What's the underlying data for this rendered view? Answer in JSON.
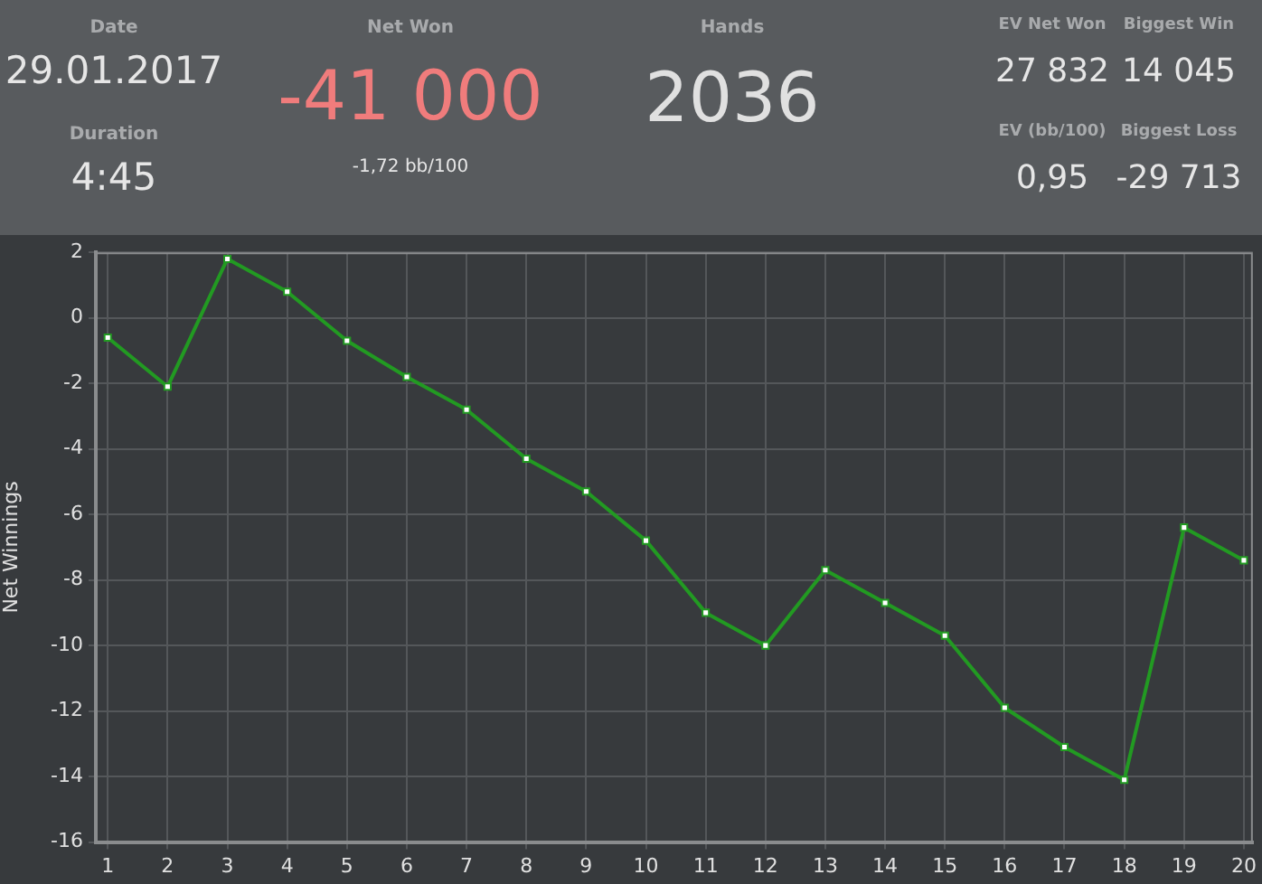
{
  "chart_data": [
    {
      "type": "other",
      "annotations": [
        "Date",
        "29.01.2017",
        "Duration",
        "4:45",
        "Net Won",
        "-41 000",
        "-1,72 bb/100",
        "Hands",
        "2036",
        "EV Net Won",
        "27 832",
        "Biggest Win",
        "14 045",
        "EV (bb/100)",
        "0,95",
        "Biggest Loss",
        "-29 713"
      ]
    },
    {
      "type": "line",
      "ylabel": "Net Winnings",
      "x": [
        1,
        2,
        3,
        4,
        5,
        6,
        7,
        8,
        9,
        10,
        11,
        12,
        13,
        14,
        15,
        16,
        17,
        18,
        19,
        20
      ],
      "series": [
        {
          "color": "#229a22",
          "values": [
            -0.6,
            -2.1,
            1.8,
            0.8,
            -0.7,
            -1.8,
            -2.8,
            -4.3,
            -5.3,
            -6.8,
            -9.0,
            -10.0,
            -7.7,
            -8.7,
            -9.7,
            -11.9,
            -13.1,
            -14.1,
            -6.4,
            -7.4
          ]
        }
      ],
      "xlim": [
        0.8,
        20.15
      ],
      "xticks": [
        1,
        2,
        3,
        4,
        5,
        6,
        7,
        8,
        9,
        10,
        11,
        12,
        13,
        14,
        15,
        16,
        17,
        18,
        19,
        20
      ],
      "ylim": [
        -16,
        2
      ],
      "yticks": [
        -16,
        -14,
        -12,
        -10,
        -8,
        -6,
        -4,
        -2,
        0,
        2
      ],
      "grid": true,
      "marker": "square",
      "line_style": "solid",
      "legend": false
    }
  ]
}
